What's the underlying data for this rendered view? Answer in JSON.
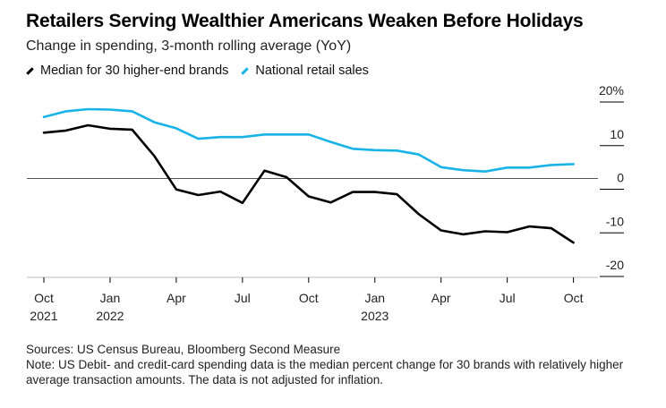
{
  "header": {
    "title": "Retailers Serving Wealthier Americans Weaken Before Holidays",
    "subtitle": "Change in spending, 3-month rolling average (YoY)"
  },
  "chart_data": {
    "type": "line",
    "title": "Retailers Serving Wealthier Americans Weaken Before Holidays",
    "subtitle": "Change in spending, 3-month rolling average (YoY)",
    "x_ticks": [
      {
        "x": "2021-10",
        "label": "Oct",
        "label2": "2021"
      },
      {
        "x": "2022-01",
        "label": "Jan",
        "label2": "2022"
      },
      {
        "x": "2022-04",
        "label": "Apr",
        "label2": ""
      },
      {
        "x": "2022-07",
        "label": "Jul",
        "label2": ""
      },
      {
        "x": "2022-10",
        "label": "Oct",
        "label2": ""
      },
      {
        "x": "2023-01",
        "label": "Jan",
        "label2": "2023"
      },
      {
        "x": "2023-04",
        "label": "Apr",
        "label2": ""
      },
      {
        "x": "2023-07",
        "label": "Jul",
        "label2": ""
      },
      {
        "x": "2023-10",
        "label": "Oct",
        "label2": ""
      }
    ],
    "y_ticks": [
      {
        "value": 20,
        "label": "20%"
      },
      {
        "value": 10,
        "label": "10"
      },
      {
        "value": 0,
        "label": "0"
      },
      {
        "value": -10,
        "label": "-10"
      },
      {
        "value": -20,
        "label": "-20"
      }
    ],
    "ylim": [
      -20,
      20
    ],
    "grid": false,
    "legend_position": "top-left",
    "x": [
      "2021-10",
      "2021-11",
      "2021-12",
      "2022-01",
      "2022-02",
      "2022-03",
      "2022-04",
      "2022-05",
      "2022-06",
      "2022-07",
      "2022-08",
      "2022-09",
      "2022-10",
      "2022-11",
      "2022-12",
      "2023-01",
      "2023-02",
      "2023-03",
      "2023-04",
      "2023-05",
      "2023-06",
      "2023-07",
      "2023-08",
      "2023-09",
      "2023-10"
    ],
    "series": [
      {
        "name": "Median for 30 higher-end brands",
        "color": "#000000",
        "values": [
          10.5,
          11.0,
          12.2,
          11.4,
          11.2,
          5.2,
          -2.5,
          -3.8,
          -3.0,
          -5.6,
          1.8,
          0.3,
          -4.1,
          -5.5,
          -3.1,
          -3.1,
          -3.6,
          -8.2,
          -11.9,
          -12.8,
          -12.1,
          -12.3,
          -11.0,
          -11.4,
          -14.7
        ]
      },
      {
        "name": "National retail sales",
        "color": "#1ab3e8",
        "values": [
          14.1,
          15.4,
          15.9,
          15.8,
          15.4,
          12.9,
          11.5,
          9.1,
          9.5,
          9.5,
          10.1,
          10.1,
          10.1,
          8.4,
          6.8,
          6.5,
          6.4,
          5.5,
          2.6,
          1.9,
          1.6,
          2.5,
          2.5,
          3.1,
          3.3
        ]
      }
    ]
  },
  "footer": {
    "sources": "Sources: US Census Bureau, Bloomberg Second Measure",
    "note": "Note: US Debit- and credit-card spending data is the median percent change for 30 brands with relatively higher average transaction amounts. The data is not adjusted for inflation."
  }
}
